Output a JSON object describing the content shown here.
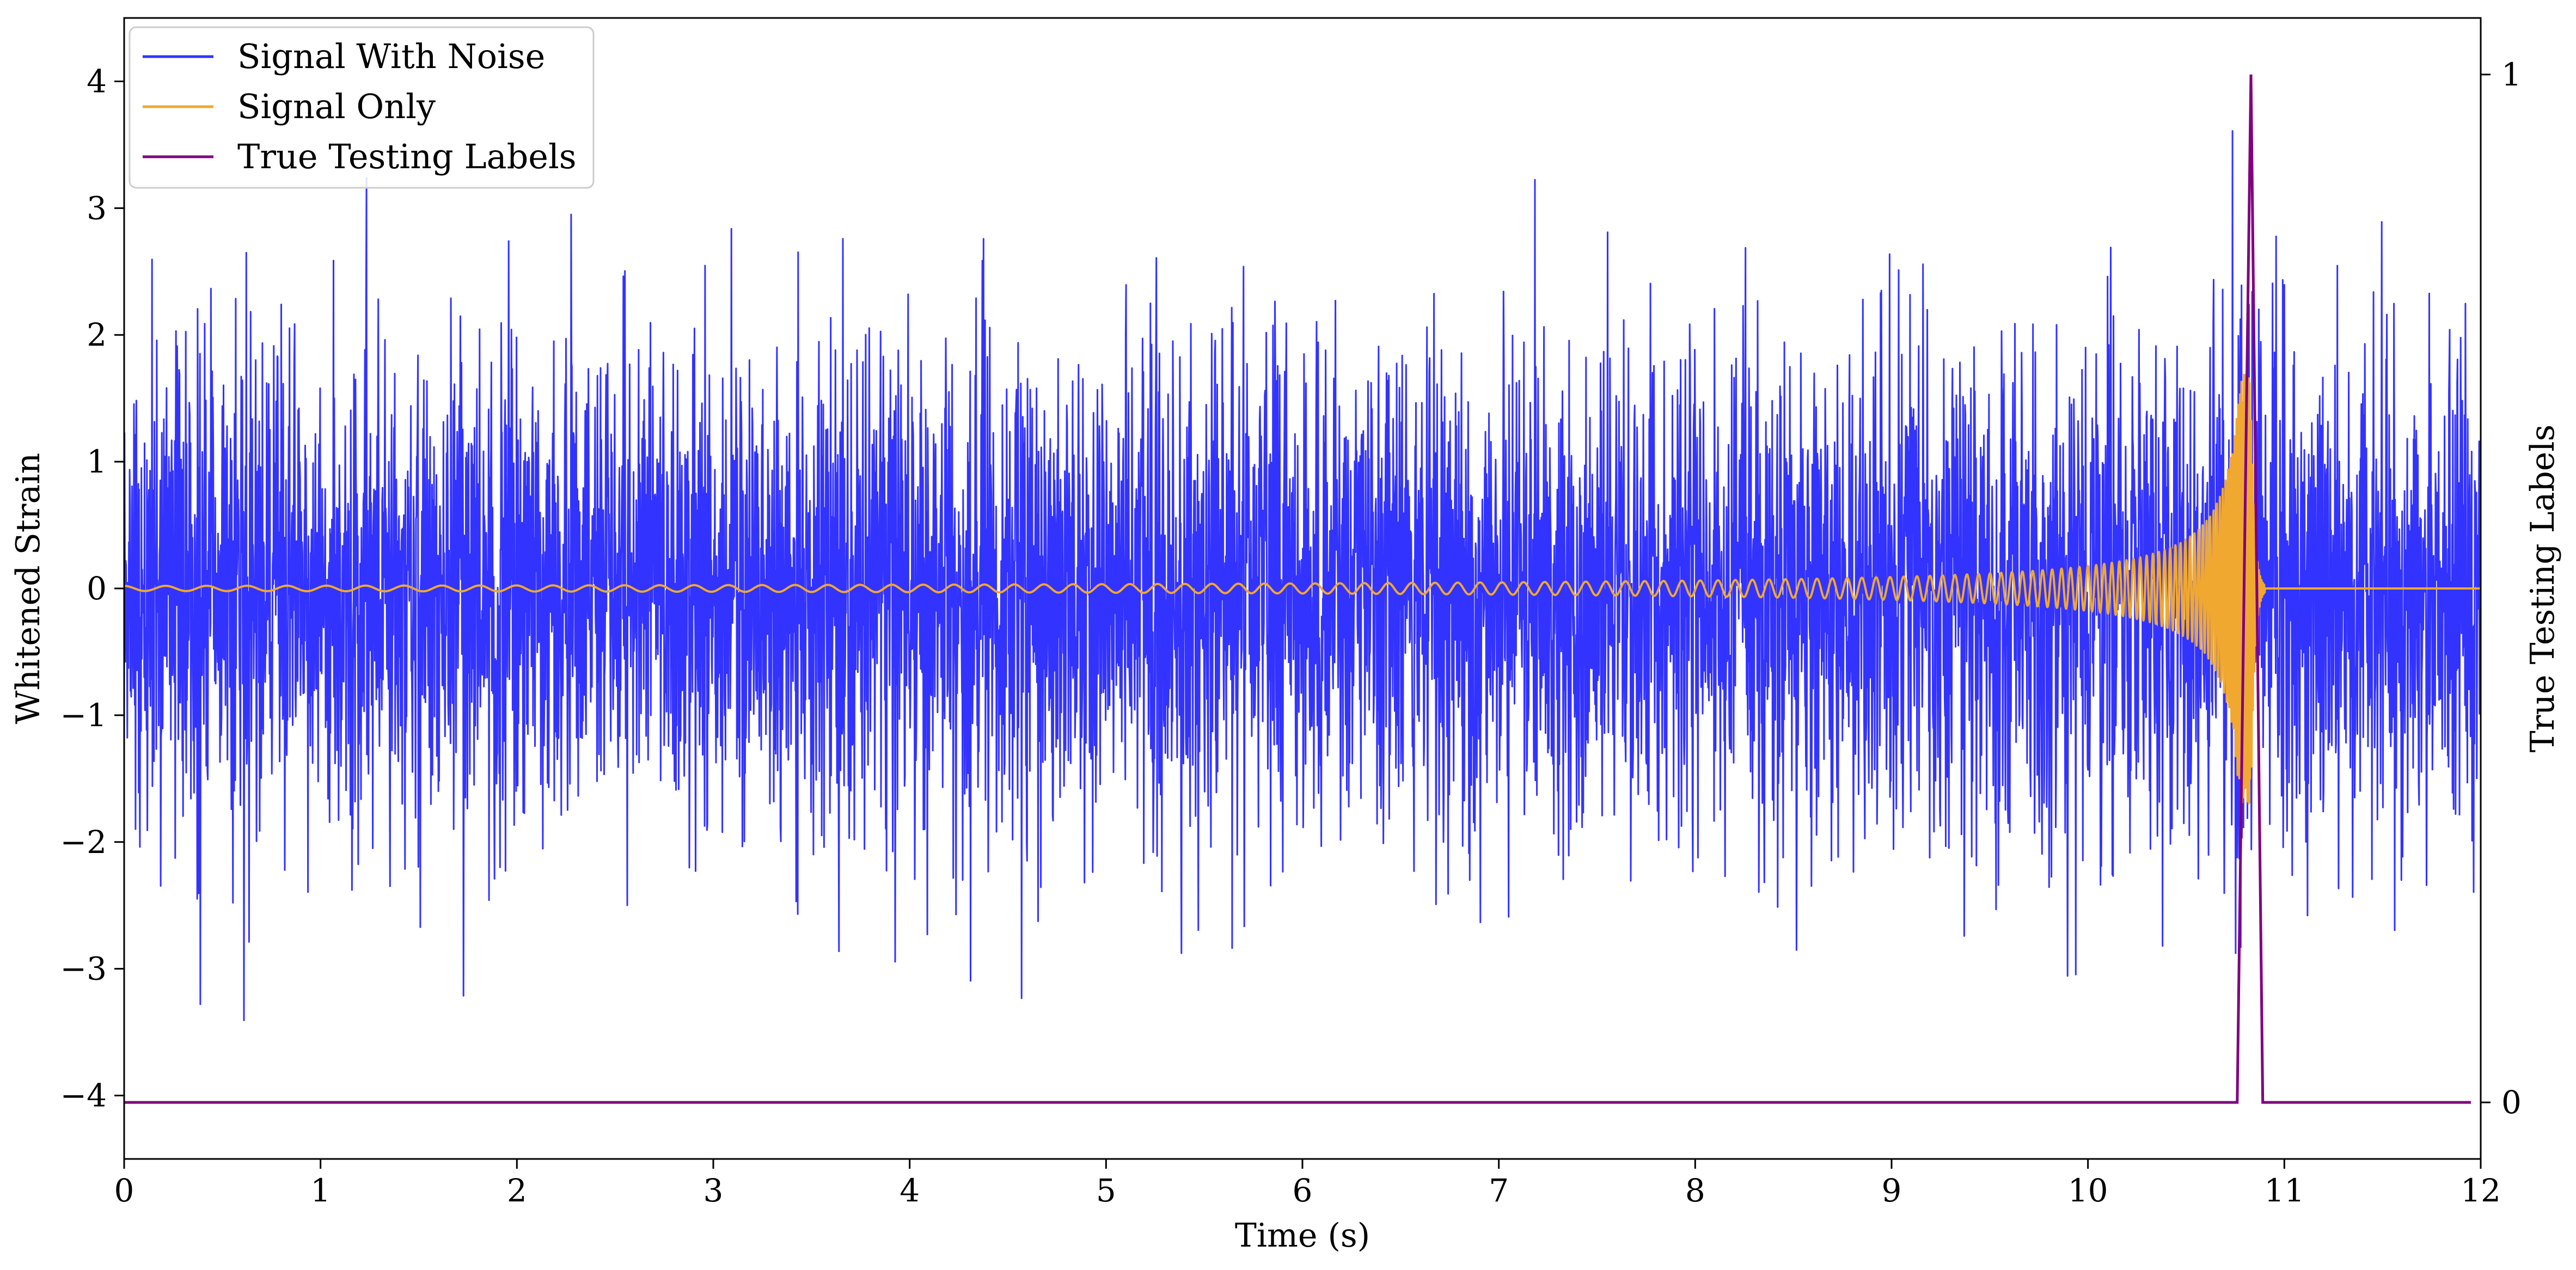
{
  "chart_data": {
    "type": "line",
    "xlabel": "Time (s)",
    "ylabel": "Whitened Strain",
    "y2label": "True Testing Labels",
    "xlim": [
      0,
      12
    ],
    "ylim": [
      -4.5,
      4.5
    ],
    "y2lim": [
      -0.055,
      1.055
    ],
    "x_ticks": [
      0,
      1,
      2,
      3,
      4,
      5,
      6,
      7,
      8,
      9,
      10,
      11,
      12
    ],
    "y_ticks": [
      -4,
      -3,
      -2,
      -1,
      0,
      1,
      2,
      3,
      4
    ],
    "y_tick_labels": [
      "−4",
      "−3",
      "−2",
      "−1",
      "0",
      "1",
      "2",
      "3",
      "4"
    ],
    "y2_ticks": [
      0,
      1
    ],
    "y2_tick_labels": [
      "0",
      "1"
    ],
    "grid": false,
    "legend_position": "top-left",
    "series": [
      {
        "name": "Signal With Noise",
        "axis": "left",
        "color": "#3333ff",
        "description_values": {
          "mean": 0,
          "std": 1.0,
          "min": -4.2,
          "max": 4.1,
          "duration_s": 12
        }
      },
      {
        "name": "Signal Only",
        "axis": "left",
        "color": "#f0a830",
        "chirp": {
          "start_amplitude": 0.02,
          "peak_amplitude": 1.7,
          "start_freq_hz": 7,
          "peak_time_s": 10.83,
          "ringdown_end_s": 10.9,
          "after_value": 0
        }
      },
      {
        "name": "True Testing Labels",
        "axis": "right",
        "color": "#800080",
        "x": [
          0,
          10.76,
          10.83,
          10.89,
          11.95
        ],
        "values": [
          0,
          0,
          1,
          0,
          0
        ]
      }
    ]
  }
}
